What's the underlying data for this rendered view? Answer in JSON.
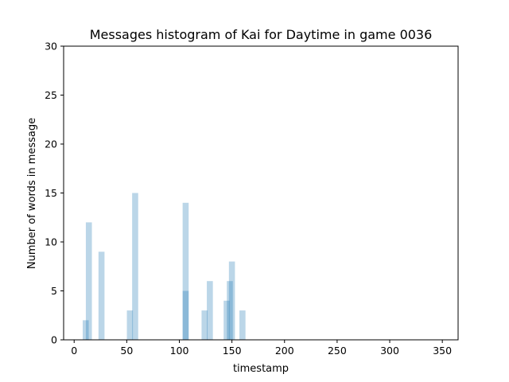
{
  "chart_data": {
    "type": "bar",
    "title": "Messages histogram of Kai for Daytime in game 0036",
    "xlabel": "timestamp",
    "ylabel": "Number of words in message",
    "xlim": [
      -10,
      365
    ],
    "ylim": [
      0,
      30
    ],
    "x_ticks": [
      "0",
      "50",
      "100",
      "150",
      "200",
      "250",
      "300",
      "350"
    ],
    "y_ticks": [
      "0",
      "5",
      "10",
      "15",
      "20",
      "25",
      "30"
    ],
    "bar_color": "#1f77b4",
    "bar_alpha": 0.3,
    "grid": false,
    "bars": [
      {
        "x": 11,
        "y": 2
      },
      {
        "x": 14,
        "y": 12
      },
      {
        "x": 26,
        "y": 9
      },
      {
        "x": 53,
        "y": 3
      },
      {
        "x": 58,
        "y": 15
      },
      {
        "x": 106,
        "y": 14
      },
      {
        "x": 106,
        "y": 5
      },
      {
        "x": 124,
        "y": 3
      },
      {
        "x": 129,
        "y": 6
      },
      {
        "x": 145,
        "y": 4
      },
      {
        "x": 148,
        "y": 6
      },
      {
        "x": 150,
        "y": 8
      },
      {
        "x": 160,
        "y": 3
      }
    ]
  }
}
